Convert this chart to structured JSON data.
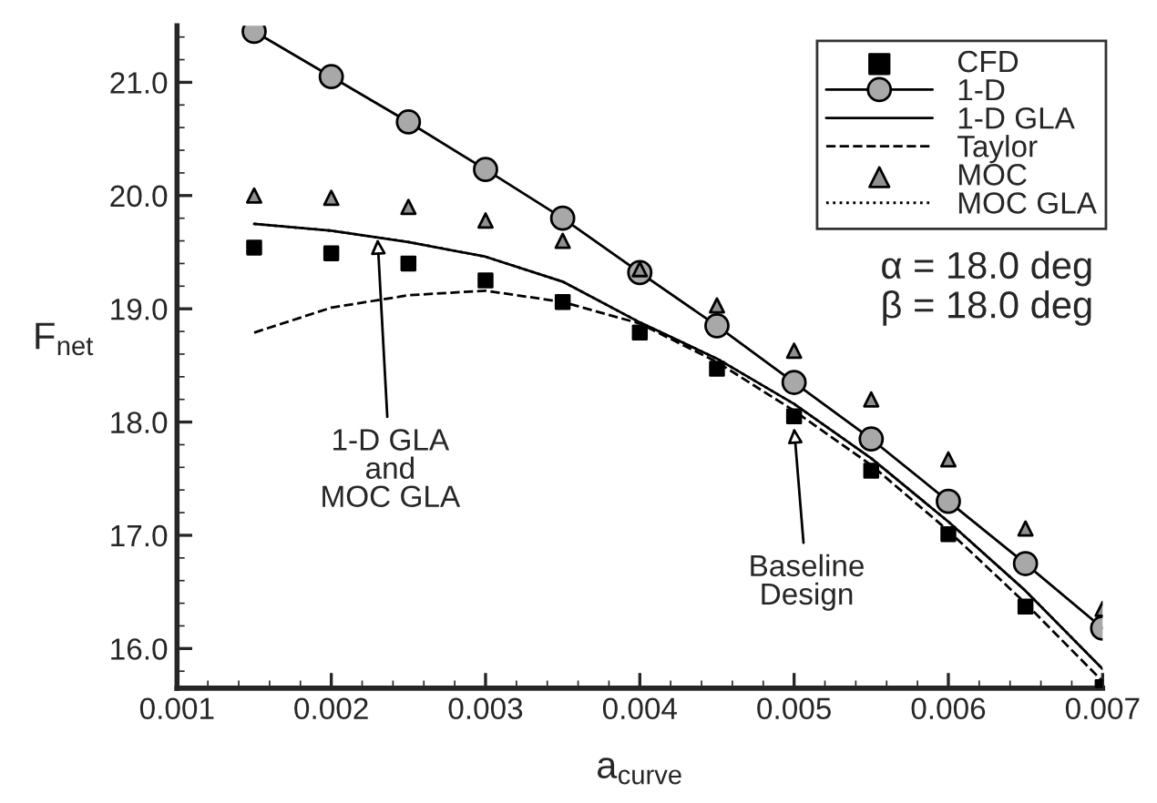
{
  "chart_data": {
    "type": "line",
    "xlabel": "a$_{curve}$",
    "ylabel": "F$_{net}$",
    "x": [
      0.0015,
      0.002,
      0.0025,
      0.003,
      0.0035,
      0.004,
      0.0045,
      0.005,
      0.0055,
      0.006,
      0.0065,
      0.007
    ],
    "xlim": [
      0.001,
      0.007
    ],
    "xticks": [
      {
        "value": 0.001,
        "label": "0.001"
      },
      {
        "value": 0.002,
        "label": "0.002"
      },
      {
        "value": 0.003,
        "label": "0.003"
      },
      {
        "value": 0.004,
        "label": "0.004"
      },
      {
        "value": 0.005,
        "label": "0.005"
      },
      {
        "value": 0.006,
        "label": "0.006"
      },
      {
        "value": 0.007,
        "label": "0.007"
      }
    ],
    "ylim": [
      15.65,
      21.5
    ],
    "yticks": [
      {
        "value": 16,
        "label": "16.0"
      },
      {
        "value": 17,
        "label": "17.0"
      },
      {
        "value": 18,
        "label": "18.0"
      },
      {
        "value": 19,
        "label": "19.0"
      },
      {
        "value": 20,
        "label": "20.0"
      },
      {
        "value": 21,
        "label": "21.0"
      }
    ],
    "grid": false,
    "legend": "top right",
    "series": [
      {
        "name": "CFD",
        "type": "scatter",
        "marker": "square",
        "color": "#000000",
        "values": [
          19.54,
          19.49,
          19.4,
          19.25,
          19.06,
          18.79,
          18.47,
          18.05,
          17.57,
          17.01,
          16.37,
          15.66
        ]
      },
      {
        "name": "1-D",
        "marker": "circle",
        "line_style": "solid",
        "color": "#000000",
        "values": [
          21.45,
          21.05,
          20.65,
          20.23,
          19.8,
          19.32,
          18.85,
          18.35,
          17.85,
          17.3,
          16.75,
          16.18
        ]
      },
      {
        "name": "1-D GLA",
        "marker": "none",
        "line_style": "solid",
        "color": "#000000",
        "values": [
          19.75,
          19.69,
          19.59,
          19.46,
          19.24,
          18.88,
          18.56,
          18.16,
          17.68,
          17.12,
          16.51,
          15.82
        ]
      },
      {
        "name": "Taylor",
        "marker": "none",
        "line_style": "dashed",
        "color": "#000000",
        "values": [
          18.79,
          19.01,
          19.12,
          19.16,
          19.06,
          18.87,
          18.53,
          18.1,
          17.62,
          17.04,
          16.4,
          15.71
        ]
      },
      {
        "name": "MOC",
        "type": "scatter",
        "marker": "triangle",
        "color": "#909090",
        "values": [
          20.0,
          19.98,
          19.9,
          19.78,
          19.6,
          19.35,
          19.03,
          18.63,
          18.2,
          17.67,
          17.06,
          16.35
        ]
      },
      {
        "name": "MOC GLA",
        "marker": "none",
        "line_style": "dotted",
        "color": "#000000",
        "values": [
          19.75,
          19.69,
          19.59,
          19.46,
          19.24,
          18.88,
          18.56,
          18.16,
          17.68,
          17.12,
          16.51,
          15.82
        ]
      }
    ],
    "annotations": [
      {
        "text": "1-D GLA\nand\nMOC GLA",
        "x": 0.0023,
        "y": 19.62
      },
      {
        "text": "Baseline\nDesign",
        "x": 0.005,
        "y": 17.95
      },
      "α = 18.0 deg\nβ = 18.0 deg"
    ]
  }
}
